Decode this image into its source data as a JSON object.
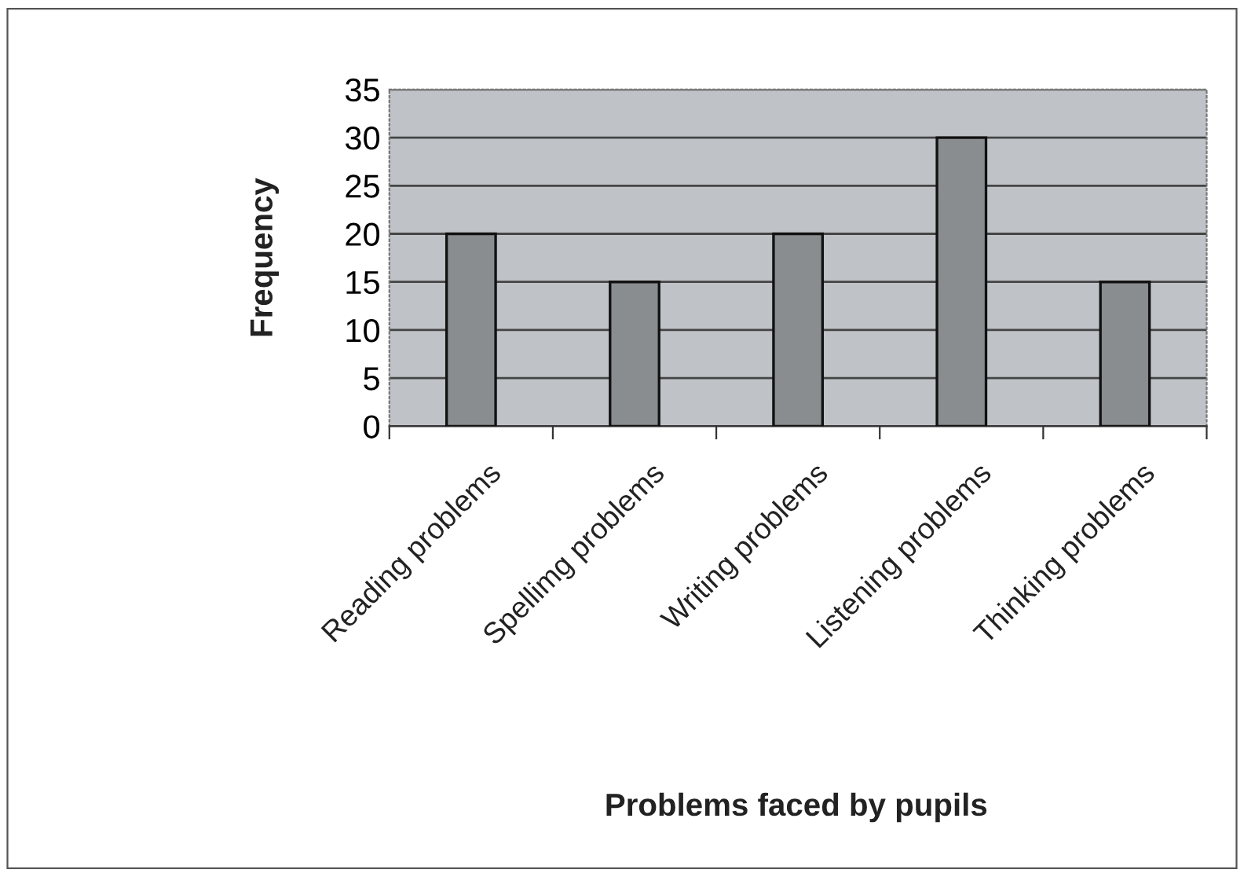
{
  "chart_data": {
    "type": "bar",
    "xlabel": "Problems faced by pupils",
    "ylabel": "Frequency",
    "categories": [
      "Reading problems",
      "Spellimg problems",
      "Writing problems",
      "Listening problems",
      "Thinking problems"
    ],
    "values": [
      20,
      15,
      20,
      30,
      15
    ],
    "color": "#8a8d90",
    "ylim": [
      0,
      35
    ],
    "yticks": [
      0,
      5,
      10,
      15,
      20,
      25,
      30,
      35
    ],
    "grid": "y",
    "legend": false
  }
}
